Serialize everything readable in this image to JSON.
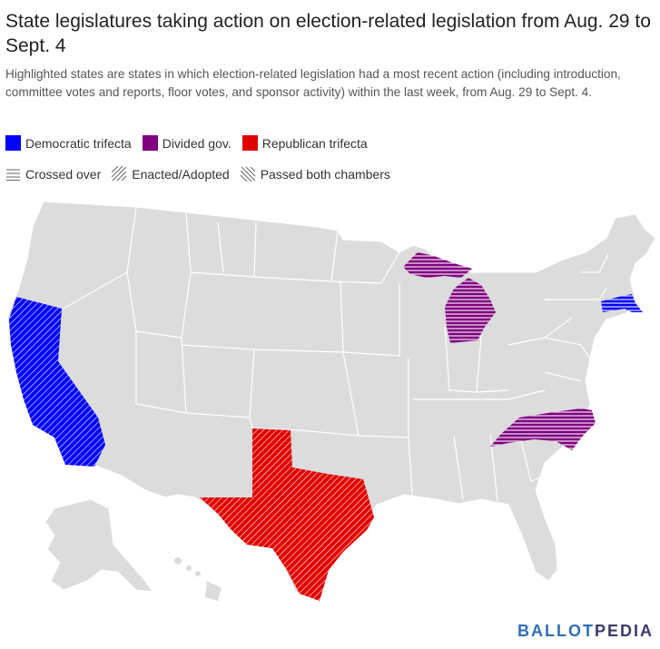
{
  "title": "State legislatures taking action on election-related legislation from Aug. 29 to Sept. 4",
  "subtitle": "Highlighted states are states in which election-related legislation had a most recent action (including introduction, committee votes and reports, floor votes, and sponsor activity) within the last week, from Aug. 29 to Sept. 4.",
  "legend": {
    "colors": [
      {
        "label": "Democratic trifecta",
        "color": "#0000ff"
      },
      {
        "label": "Divided gov.",
        "color": "#800080"
      },
      {
        "label": "Republican trifecta",
        "color": "#e00000"
      }
    ],
    "patterns": [
      {
        "label": "Crossed over",
        "pattern": "horizontal-lines-icon"
      },
      {
        "label": "Enacted/Adopted",
        "pattern": "diagonal-lines-icon"
      },
      {
        "label": "Passed both chambers",
        "pattern": "back-diagonal-lines-icon"
      }
    ]
  },
  "map": {
    "base_color": "#dcdcdc",
    "border_color": "#ffffff",
    "highlighted_states": [
      {
        "state": "California",
        "group": "Democratic trifecta",
        "pattern": "Enacted/Adopted"
      },
      {
        "state": "Massachusetts",
        "group": "Democratic trifecta",
        "pattern": "Crossed over"
      },
      {
        "state": "Michigan",
        "group": "Divided gov.",
        "pattern": "Crossed over"
      },
      {
        "state": "North Carolina",
        "group": "Divided gov.",
        "pattern": "Crossed over"
      },
      {
        "state": "Texas",
        "group": "Republican trifecta",
        "pattern": "Enacted/Adopted"
      }
    ]
  },
  "brand": {
    "part1": "BALLOT",
    "part2": "PEDIA"
  }
}
